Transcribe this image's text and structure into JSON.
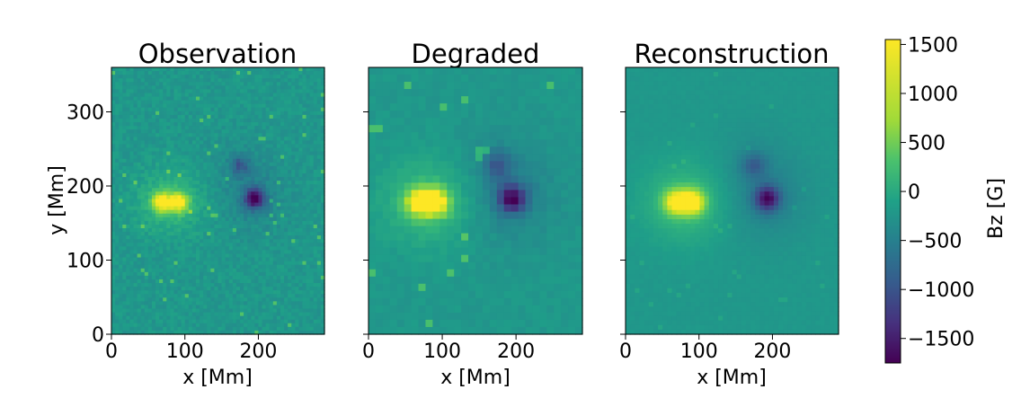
{
  "chart_data": [
    {
      "type": "heatmap",
      "title": "Observation",
      "xlabel": "x [Mm]",
      "ylabel": "y [Mm]",
      "xlim": [
        0,
        290
      ],
      "ylim": [
        0,
        360
      ],
      "xticks": [
        0,
        100,
        200
      ],
      "yticks": [
        0,
        100,
        200,
        300
      ],
      "resolution": "high",
      "features": [
        {
          "kind": "positive",
          "x": 68,
          "y": 178,
          "peak": 1500
        },
        {
          "kind": "positive",
          "x": 92,
          "y": 178,
          "peak": 1450
        },
        {
          "kind": "negative",
          "x": 195,
          "y": 183,
          "peak": -1650
        },
        {
          "kind": "negative",
          "x": 175,
          "y": 228,
          "peak": -700
        }
      ]
    },
    {
      "type": "heatmap",
      "title": "Degraded",
      "xlabel": "x [Mm]",
      "xlim": [
        0,
        290
      ],
      "ylim": [
        0,
        360
      ],
      "xticks": [
        0,
        100,
        200
      ],
      "resolution": "low",
      "features": [
        {
          "kind": "positive",
          "x": 68,
          "y": 178,
          "peak": 1400
        },
        {
          "kind": "positive",
          "x": 92,
          "y": 178,
          "peak": 1450
        },
        {
          "kind": "negative",
          "x": 195,
          "y": 183,
          "peak": -1500
        },
        {
          "kind": "negative",
          "x": 175,
          "y": 228,
          "peak": -650
        }
      ]
    },
    {
      "type": "heatmap",
      "title": "Reconstruction",
      "xlabel": "x [Mm]",
      "xlim": [
        0,
        290
      ],
      "ylim": [
        0,
        360
      ],
      "xticks": [
        0,
        100,
        200
      ],
      "resolution": "smooth",
      "features": [
        {
          "kind": "positive",
          "x": 68,
          "y": 178,
          "peak": 1350
        },
        {
          "kind": "positive",
          "x": 92,
          "y": 178,
          "peak": 1450
        },
        {
          "kind": "negative",
          "x": 193,
          "y": 183,
          "peak": -1450
        },
        {
          "kind": "negative",
          "x": 175,
          "y": 228,
          "peak": -600
        }
      ]
    }
  ],
  "colorbar": {
    "label": "Bz [G]",
    "min": -1750,
    "max": 1550,
    "ticks": [
      1500,
      1000,
      500,
      0,
      -500,
      -1000,
      -1500
    ],
    "colormap": "viridis"
  }
}
